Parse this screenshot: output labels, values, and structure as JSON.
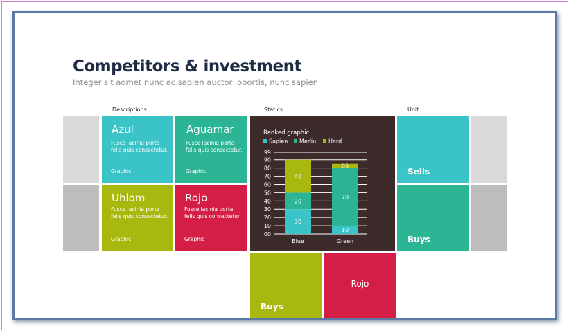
{
  "header": {
    "title": "Competitors & investment",
    "subtitle": "Integer sit aomet nunc ac sapien auctor lobortis, nunc sapien"
  },
  "columns": {
    "descriptions": "Descriptions",
    "statics": "Statics",
    "unit": "Unit"
  },
  "tiles": [
    {
      "name": "Azul",
      "body": "Fusce lacinia porta felis quis consectetur.",
      "link": "Graphic",
      "color": "#3bc4c8"
    },
    {
      "name": "Aguamar",
      "body": "Fusce lacinia porta felis quis consectetur.",
      "link": "Graphic",
      "color": "#2cb595"
    },
    {
      "name": "Uhlom",
      "body": "Fusce lacinia porta felis quis consectetur.",
      "link": "Graphic",
      "color": "#a8b80f"
    },
    {
      "name": "Rojo",
      "body": "Fusce lacinia porta felis quis consectetur.",
      "link": "Graphic",
      "color": "#d41e46"
    }
  ],
  "unit_tiles": {
    "sells": "Sells",
    "buys": "Buys"
  },
  "bottom_tiles": {
    "buys": "Buys",
    "rojo": "Rojo"
  },
  "colors": {
    "gray_light": "#d9d9d9",
    "gray_dark": "#bdbdbd",
    "chart_bg": "#3d2a2b",
    "sapien": "#3bc4c8",
    "mediu": "#2cb595",
    "hard": "#a8b80f"
  },
  "chart_data": {
    "type": "bar",
    "stacked": true,
    "title": "Ranked graphic",
    "categories": [
      "Blue",
      "Green"
    ],
    "series": [
      {
        "name": "Sapien",
        "values": [
          30,
          10
        ],
        "labels": [
          "30",
          "10"
        ]
      },
      {
        "name": "Mediu",
        "values": [
          20,
          70
        ],
        "labels": [
          "20",
          "70"
        ]
      },
      {
        "name": "Hard",
        "values": [
          40,
          5
        ],
        "labels": [
          "40",
          "05"
        ]
      }
    ],
    "yticks": [
      "00",
      "10",
      "20",
      "30",
      "40",
      "50",
      "60",
      "70",
      "80",
      "90",
      "99"
    ],
    "ylim": [
      0,
      99
    ],
    "grid": true
  }
}
